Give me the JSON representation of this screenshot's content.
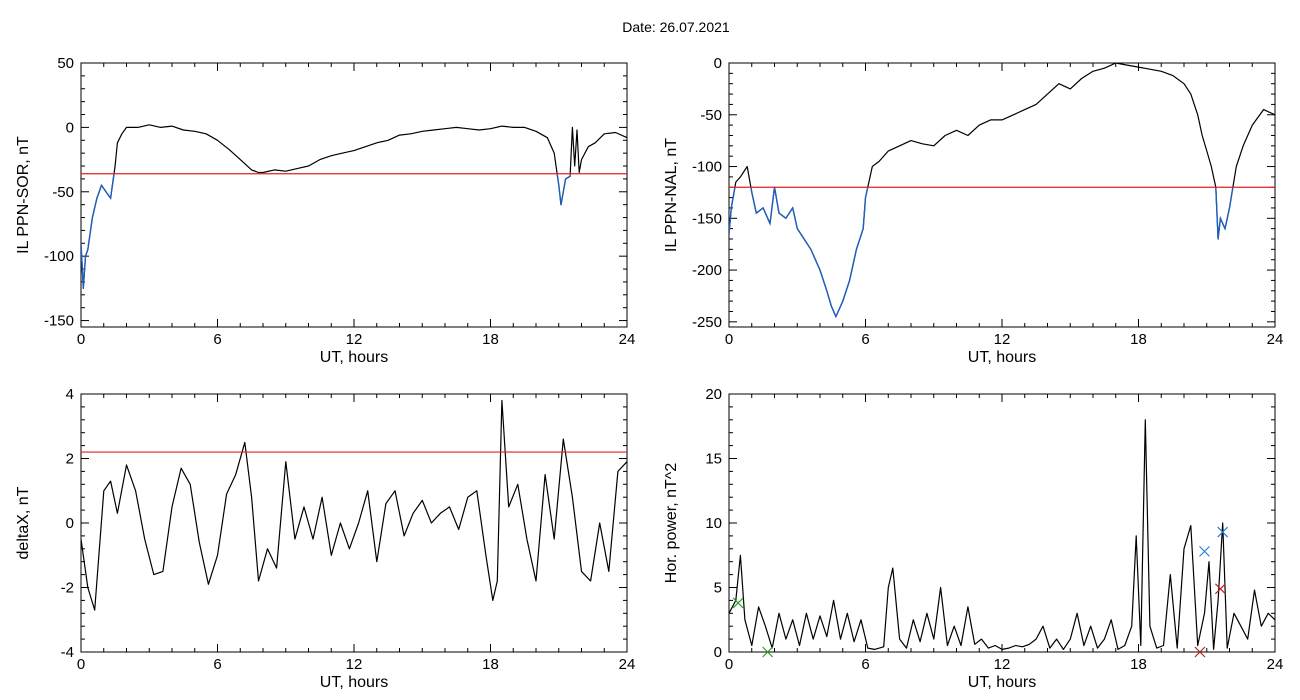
{
  "title": "Date:  26.07.2021",
  "colors": {
    "trace": "#000000",
    "below": "#1f5fbf",
    "threshold": "#e02020",
    "marker_blue": "#2a7fd0",
    "marker_red": "#c02020",
    "marker_green": "#2ca02c"
  },
  "chart_data": [
    {
      "type": "line",
      "ylabel": "IL PPN-SOR, nT",
      "xlabel": "UT, hours",
      "xlim": [
        0,
        24
      ],
      "ylim": [
        -155,
        50
      ],
      "xticks": [
        0,
        6,
        12,
        18,
        24
      ],
      "yticks": [
        50,
        0,
        -50,
        -100,
        -150
      ],
      "threshold": -36,
      "x": [
        0,
        0.1,
        0.2,
        0.3,
        0.5,
        0.7,
        0.9,
        1.1,
        1.3,
        1.5,
        1.6,
        1.8,
        2.0,
        2.5,
        3.0,
        3.5,
        4.0,
        4.5,
        5.0,
        5.5,
        6.0,
        6.5,
        7.0,
        7.5,
        7.8,
        8.0,
        8.5,
        9.0,
        9.5,
        10.0,
        10.5,
        11.0,
        11.5,
        12.0,
        12.5,
        13.0,
        13.5,
        14.0,
        14.5,
        15.0,
        15.5,
        16.0,
        16.5,
        17.0,
        17.5,
        18.0,
        18.5,
        19.0,
        19.5,
        20.0,
        20.5,
        20.8,
        21.0,
        21.1,
        21.3,
        21.5,
        21.6,
        21.7,
        21.8,
        21.9,
        22.0,
        22.3,
        22.6,
        23.0,
        23.5,
        24.0
      ],
      "y": [
        -90,
        -125,
        -100,
        -95,
        -70,
        -55,
        -45,
        -50,
        -55,
        -30,
        -12,
        -5,
        0,
        0,
        2,
        0,
        1,
        -2,
        -3,
        -5,
        -10,
        -17,
        -25,
        -33,
        -35,
        -35,
        -33,
        -34,
        -32,
        -30,
        -25,
        -22,
        -20,
        -18,
        -15,
        -12,
        -10,
        -6,
        -5,
        -3,
        -2,
        -1,
        0,
        -1,
        -2,
        -1,
        1,
        0,
        0,
        -3,
        -8,
        -20,
        -45,
        -60,
        -40,
        -38,
        0,
        -30,
        -2,
        -35,
        -25,
        -15,
        -12,
        -5,
        -4,
        -8
      ]
    },
    {
      "type": "line",
      "ylabel": "IL PPN-NAL, nT",
      "xlabel": "UT, hours",
      "xlim": [
        0,
        24
      ],
      "ylim": [
        -255,
        0
      ],
      "xticks": [
        0,
        6,
        12,
        18,
        24
      ],
      "yticks": [
        0,
        -50,
        -100,
        -150,
        -200,
        -250
      ],
      "threshold": -120,
      "x": [
        0,
        0.1,
        0.3,
        0.5,
        0.8,
        1.0,
        1.2,
        1.5,
        1.8,
        2.0,
        2.2,
        2.5,
        2.8,
        3.0,
        3.3,
        3.6,
        4.0,
        4.3,
        4.5,
        4.7,
        5.0,
        5.3,
        5.6,
        5.9,
        6.0,
        6.3,
        6.6,
        7.0,
        7.5,
        8.0,
        8.5,
        9.0,
        9.5,
        10.0,
        10.5,
        11.0,
        11.5,
        12.0,
        12.5,
        13.0,
        13.5,
        14.0,
        14.5,
        15.0,
        15.5,
        16.0,
        16.5,
        17.0,
        17.5,
        18.0,
        18.5,
        19.0,
        19.5,
        20.0,
        20.3,
        20.6,
        20.8,
        21.0,
        21.2,
        21.4,
        21.5,
        21.6,
        21.8,
        22.0,
        22.3,
        22.6,
        23.0,
        23.5,
        24.0
      ],
      "y": [
        -165,
        -140,
        -115,
        -110,
        -100,
        -125,
        -145,
        -140,
        -155,
        -120,
        -145,
        -150,
        -140,
        -160,
        -170,
        -180,
        -200,
        -220,
        -235,
        -245,
        -230,
        -210,
        -180,
        -160,
        -130,
        -100,
        -95,
        -85,
        -80,
        -75,
        -78,
        -80,
        -70,
        -65,
        -70,
        -60,
        -55,
        -55,
        -50,
        -45,
        -40,
        -30,
        -20,
        -25,
        -15,
        -8,
        -5,
        0,
        -2,
        -4,
        -6,
        -8,
        -12,
        -20,
        -30,
        -50,
        -70,
        -85,
        -100,
        -120,
        -170,
        -150,
        -160,
        -140,
        -100,
        -80,
        -60,
        -45,
        -50
      ]
    },
    {
      "type": "line",
      "ylabel": "deltaX, nT",
      "xlabel": "UT, hours",
      "xlim": [
        0,
        24
      ],
      "ylim": [
        -4,
        4
      ],
      "xticks": [
        0,
        6,
        12,
        18,
        24
      ],
      "yticks": [
        4,
        2,
        0,
        -2,
        -4
      ],
      "threshold": 2.2,
      "x": [
        0,
        0.3,
        0.6,
        1.0,
        1.3,
        1.6,
        2.0,
        2.4,
        2.8,
        3.2,
        3.6,
        4.0,
        4.4,
        4.8,
        5.2,
        5.6,
        6.0,
        6.4,
        6.8,
        7.2,
        7.5,
        7.8,
        8.2,
        8.6,
        9.0,
        9.4,
        9.8,
        10.2,
        10.6,
        11.0,
        11.4,
        11.8,
        12.2,
        12.6,
        13.0,
        13.4,
        13.8,
        14.2,
        14.6,
        15.0,
        15.4,
        15.8,
        16.2,
        16.6,
        17.0,
        17.4,
        17.8,
        18.1,
        18.3,
        18.5,
        18.8,
        19.2,
        19.6,
        20.0,
        20.4,
        20.8,
        21.2,
        21.6,
        22.0,
        22.4,
        22.8,
        23.2,
        23.6,
        24.0
      ],
      "y": [
        -0.5,
        -2.0,
        -2.7,
        1.0,
        1.3,
        0.3,
        1.8,
        1.0,
        -0.5,
        -1.6,
        -1.5,
        0.5,
        1.7,
        1.2,
        -0.6,
        -1.9,
        -1.0,
        0.9,
        1.5,
        2.5,
        0.8,
        -1.8,
        -0.8,
        -1.4,
        1.9,
        -0.5,
        0.5,
        -0.5,
        0.8,
        -1.0,
        0.0,
        -0.8,
        0.0,
        1.0,
        -1.2,
        0.6,
        1.0,
        -0.4,
        0.3,
        0.7,
        0.0,
        0.3,
        0.5,
        -0.2,
        0.8,
        1.0,
        -1.0,
        -2.4,
        -1.8,
        3.8,
        0.5,
        1.2,
        -0.5,
        -1.8,
        1.5,
        -0.5,
        2.6,
        0.8,
        -1.5,
        -1.8,
        0.0,
        -1.5,
        1.6,
        1.9
      ]
    },
    {
      "type": "line",
      "ylabel": "Hor. power, nT^2",
      "xlabel": "UT, hours",
      "xlim": [
        0,
        24
      ],
      "ylim": [
        0,
        20
      ],
      "xticks": [
        0,
        6,
        12,
        18,
        24
      ],
      "yticks": [
        20,
        15,
        10,
        5,
        0
      ],
      "x": [
        0,
        0.3,
        0.5,
        0.7,
        1.0,
        1.3,
        1.6,
        1.9,
        2.2,
        2.5,
        2.8,
        3.1,
        3.4,
        3.7,
        4.0,
        4.3,
        4.6,
        4.9,
        5.2,
        5.5,
        5.8,
        6.1,
        6.4,
        6.8,
        7.0,
        7.2,
        7.5,
        7.8,
        8.1,
        8.4,
        8.7,
        9.0,
        9.3,
        9.6,
        9.9,
        10.2,
        10.5,
        10.8,
        11.1,
        11.4,
        11.7,
        12.0,
        12.3,
        12.6,
        12.9,
        13.2,
        13.5,
        13.8,
        14.1,
        14.4,
        14.7,
        15.0,
        15.3,
        15.6,
        15.9,
        16.2,
        16.5,
        16.8,
        17.1,
        17.4,
        17.7,
        17.9,
        18.1,
        18.3,
        18.5,
        18.8,
        19.1,
        19.4,
        19.7,
        20.0,
        20.3,
        20.6,
        20.9,
        21.1,
        21.3,
        21.5,
        21.7,
        21.9,
        22.2,
        22.5,
        22.8,
        23.1,
        23.4,
        23.7,
        24.0
      ],
      "y": [
        3.0,
        4.0,
        7.5,
        2.5,
        0.5,
        3.5,
        2.0,
        0.3,
        3.0,
        1.0,
        2.5,
        0.5,
        3.0,
        1.0,
        2.8,
        1.2,
        4.0,
        1.0,
        3.0,
        0.8,
        2.5,
        0.3,
        0.2,
        0.4,
        5.0,
        6.5,
        1.0,
        0.3,
        2.5,
        0.8,
        3.0,
        1.0,
        5.0,
        0.5,
        2.0,
        0.5,
        3.5,
        0.6,
        1.0,
        0.3,
        0.5,
        0.2,
        0.3,
        0.5,
        0.4,
        0.6,
        1.0,
        2.0,
        0.3,
        1.0,
        0.2,
        1.0,
        3.0,
        0.5,
        2.0,
        0.3,
        1.0,
        2.5,
        0.2,
        0.5,
        2.0,
        9.0,
        0.5,
        18.0,
        2.0,
        0.3,
        0.5,
        6.0,
        0.3,
        8.0,
        9.8,
        0.5,
        3.0,
        7.0,
        0.2,
        4.0,
        10.0,
        0.3,
        3.0,
        2.0,
        1.0,
        4.8,
        2.0,
        3.0,
        2.5
      ],
      "markers": [
        {
          "symbol": "x",
          "color": "blue",
          "x": 20.9,
          "y": 7.8
        },
        {
          "symbol": "x",
          "color": "blue",
          "x": 21.7,
          "y": 9.3
        },
        {
          "symbol": "x",
          "color": "red",
          "x": 21.6,
          "y": 4.9
        },
        {
          "symbol": "x",
          "color": "red",
          "x": 20.7,
          "y": 0.0
        },
        {
          "symbol": "x",
          "color": "green",
          "x": 0.4,
          "y": 3.8
        },
        {
          "symbol": "x",
          "color": "green",
          "x": 1.7,
          "y": 0.0
        }
      ]
    }
  ]
}
